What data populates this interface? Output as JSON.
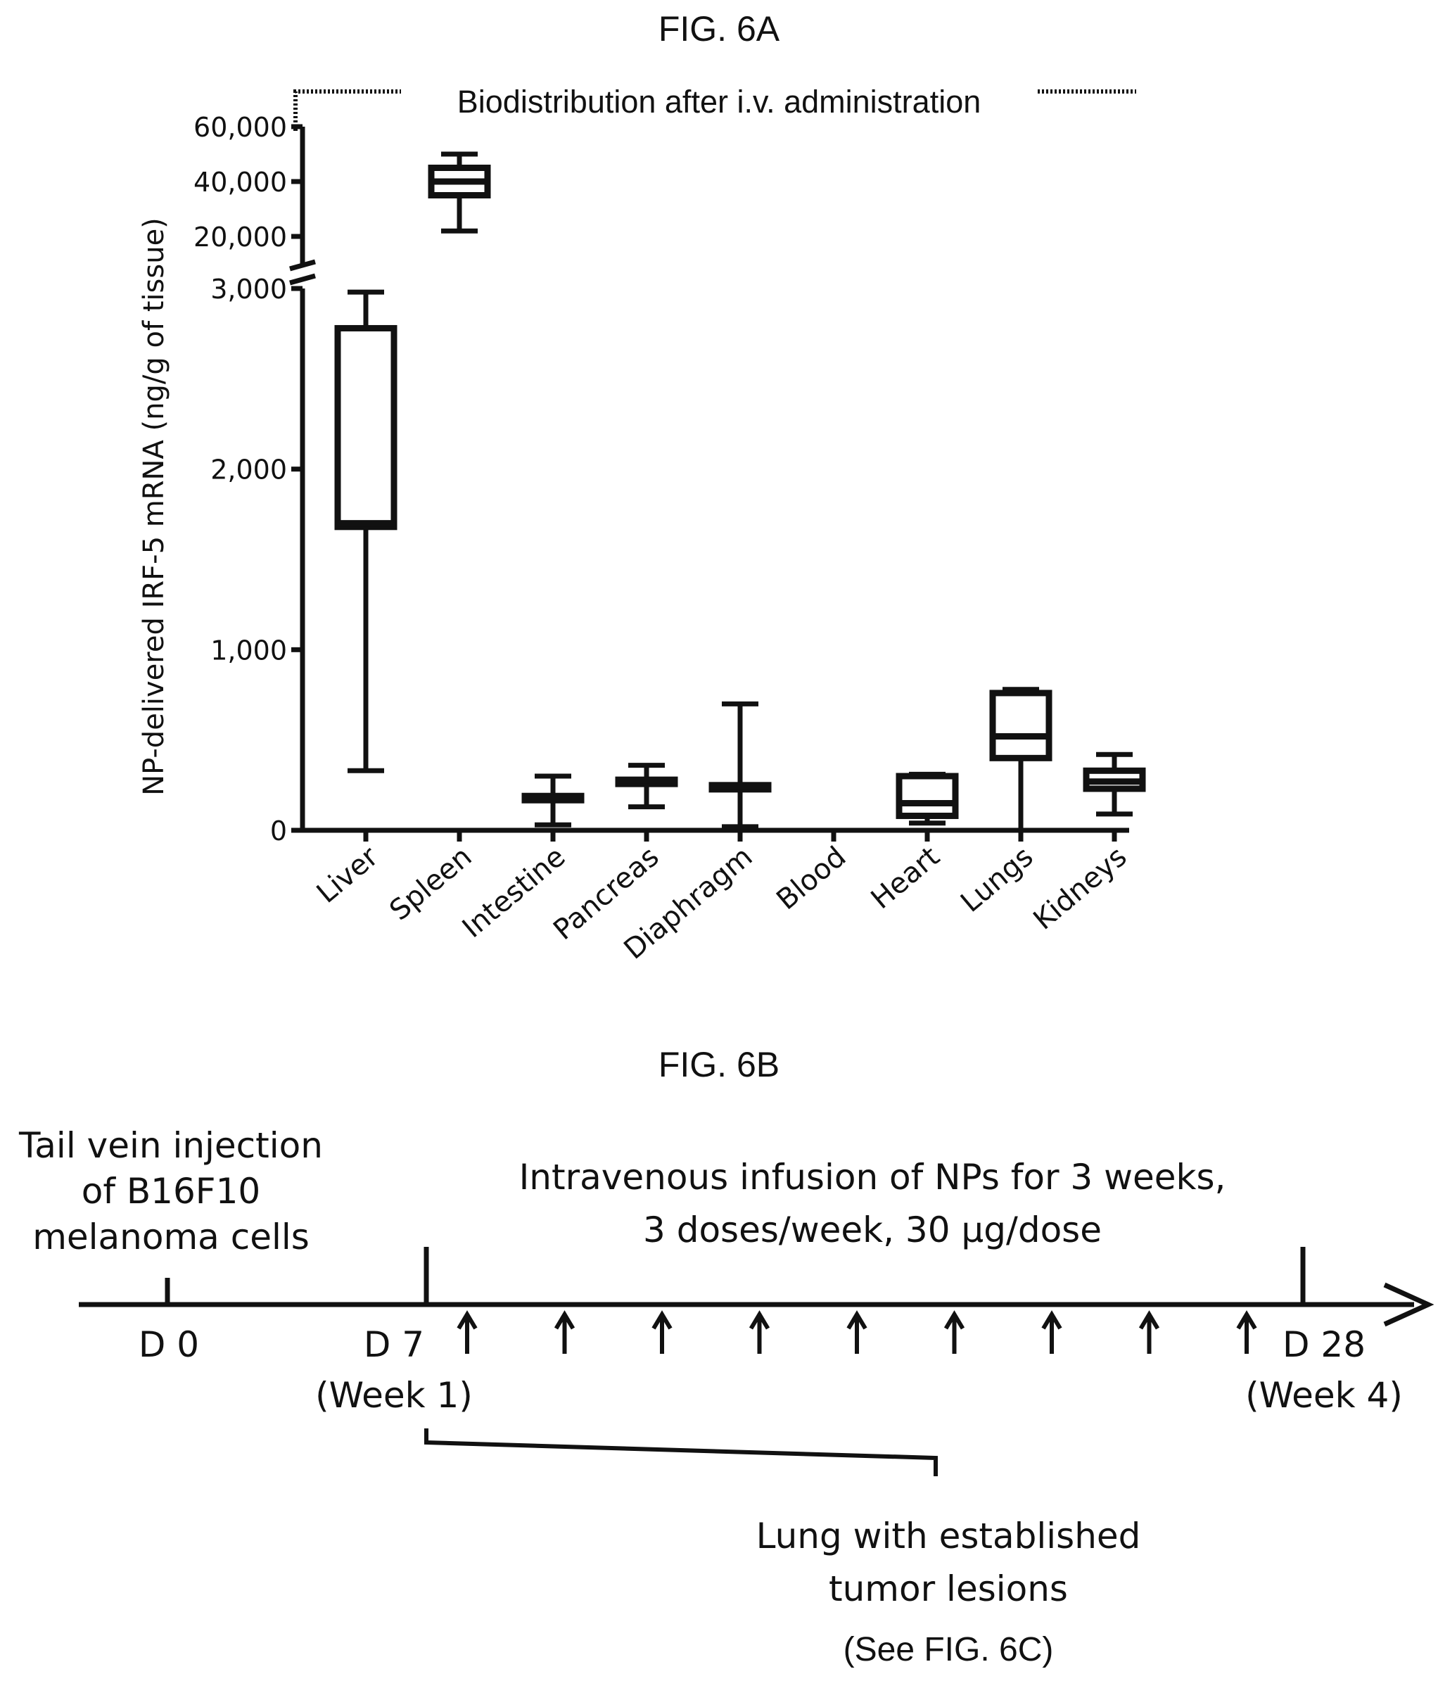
{
  "figure_a": {
    "label": "FIG. 6A"
  },
  "figure_b": {
    "label": "FIG. 6B"
  },
  "chart_data": {
    "type": "box",
    "title": "Biodistribution after i.v. administration",
    "ylabel": "NP-delivered IRF-5 mRNA (ng/g of tissue)",
    "xlabel": "",
    "y_axis": {
      "broken": true,
      "lower_segment": {
        "range": [
          0,
          3000
        ],
        "ticks": [
          0,
          1000,
          2000,
          3000
        ],
        "tick_labels": [
          "0",
          "1,000",
          "2,000",
          "3,000"
        ]
      },
      "upper_segment": {
        "range": [
          10000,
          60000
        ],
        "ticks": [
          20000,
          40000,
          60000
        ],
        "tick_labels": [
          "20,000",
          "40,000",
          "60,000"
        ]
      }
    },
    "categories": [
      "Liver",
      "Spleen",
      "Intestine",
      "Pancreas",
      "Diaphragm",
      "Blood",
      "Heart",
      "Lungs",
      "Kidneys"
    ],
    "series": [
      {
        "boxes": [
          {
            "category": "Liver",
            "min": 330,
            "q1": 1680,
            "median": 1700,
            "q3": 2780,
            "max": 2980
          },
          {
            "category": "Spleen",
            "min": 22000,
            "q1": 35000,
            "median": 40000,
            "q3": 45000,
            "max": 50000
          },
          {
            "category": "Intestine",
            "min": 30,
            "q1": 170,
            "median": 180,
            "q3": 190,
            "max": 300
          },
          {
            "category": "Pancreas",
            "min": 130,
            "q1": 270,
            "median": 275,
            "q3": 280,
            "max": 360
          },
          {
            "category": "Diaphragm",
            "min": 20,
            "q1": 240,
            "median": 245,
            "q3": 250,
            "max": 700
          },
          {
            "category": "Blood",
            "min": 0,
            "q1": 0,
            "median": 0,
            "q3": 0,
            "max": 0
          },
          {
            "category": "Heart",
            "min": 40,
            "q1": 80,
            "median": 150,
            "q3": 300,
            "max": 310
          },
          {
            "category": "Lungs",
            "min": 0,
            "q1": 400,
            "median": 520,
            "q3": 760,
            "max": 780
          },
          {
            "category": "Kidneys",
            "min": 90,
            "q1": 230,
            "median": 270,
            "q3": 330,
            "max": 420
          }
        ]
      }
    ]
  },
  "timeline": {
    "start_event": [
      "Tail vein injection",
      "of B16F10",
      "melanoma cells"
    ],
    "treatment": [
      "Intravenous infusion of NPs for 3 weeks,",
      "3 doses/week, 30 μg/dose"
    ],
    "day0": "D 0",
    "day7": [
      "D 7",
      "(Week 1)"
    ],
    "day28": [
      "D 28",
      "(Week 4)"
    ],
    "dose_count": 9,
    "note": [
      "Lung with established",
      "tumor lesions"
    ],
    "see": "(See FIG. 6C)"
  }
}
